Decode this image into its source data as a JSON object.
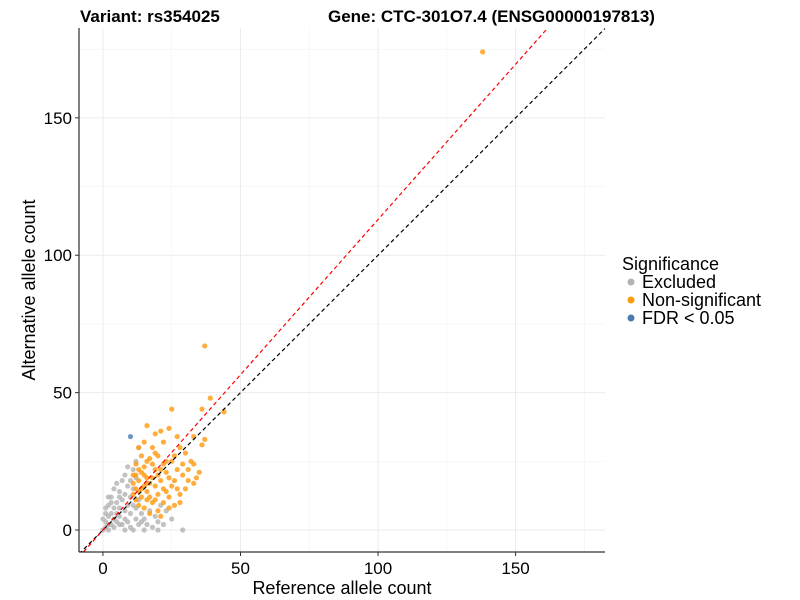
{
  "chart_data": {
    "type": "scatter",
    "title_left": "Variant: rs354025",
    "title_right": "Gene: CTC-301O7.4 (ENSG00000197813)",
    "xlabel": "Reference allele count",
    "ylabel": "Alternative allele count",
    "xlim": [
      -8.7,
      182.5
    ],
    "ylim": [
      -8,
      182.7
    ],
    "xticks": [
      0,
      50,
      100,
      150
    ],
    "yticks": [
      0,
      50,
      100,
      150
    ],
    "grid": true,
    "legend": {
      "title": "Significance",
      "placement": "right",
      "entries": [
        {
          "label": "Excluded",
          "color": "#b3b3b3"
        },
        {
          "label": "Non-significant",
          "color": "#ff9a0e"
        },
        {
          "label": "FDR < 0.05",
          "color": "#4a7bb0"
        }
      ]
    },
    "reference_lines": [
      {
        "name": "identity",
        "slope": 1.0,
        "intercept": 0,
        "color": "#000000",
        "style": "dashed"
      },
      {
        "name": "fit",
        "slope": 1.13,
        "intercept": 0,
        "color": "#ff0000",
        "style": "dashed"
      }
    ],
    "series": [
      {
        "name": "Excluded",
        "color": "#b3b3b3",
        "points": [
          [
            0,
            0
          ],
          [
            1,
            1
          ],
          [
            2,
            0
          ],
          [
            3,
            2
          ],
          [
            1,
            3
          ],
          [
            2,
            5
          ],
          [
            0,
            4
          ],
          [
            4,
            1
          ],
          [
            5,
            3
          ],
          [
            3,
            6
          ],
          [
            6,
            5
          ],
          [
            4,
            8
          ],
          [
            2,
            9
          ],
          [
            7,
            2
          ],
          [
            8,
            4
          ],
          [
            6,
            8
          ],
          [
            5,
            10
          ],
          [
            3,
            12
          ],
          [
            7,
            11
          ],
          [
            8,
            7
          ],
          [
            9,
            3
          ],
          [
            10,
            1
          ],
          [
            9,
            9
          ],
          [
            10,
            6
          ],
          [
            6,
            14
          ],
          [
            4,
            15
          ],
          [
            8,
            13
          ],
          [
            9,
            16
          ],
          [
            7,
            18
          ],
          [
            5,
            17
          ],
          [
            10,
            12
          ],
          [
            11,
            9
          ],
          [
            12,
            4
          ],
          [
            13,
            2
          ],
          [
            12,
            8
          ],
          [
            14,
            6
          ],
          [
            11,
            15
          ],
          [
            13,
            11
          ],
          [
            15,
            4
          ],
          [
            16,
            2
          ],
          [
            17,
            7
          ],
          [
            18,
            1
          ],
          [
            19,
            5
          ],
          [
            20,
            3
          ],
          [
            22,
            2
          ],
          [
            25,
            4
          ],
          [
            29,
            0
          ],
          [
            20,
            0
          ],
          [
            23,
            7
          ],
          [
            21,
            9
          ],
          [
            8,
            20
          ],
          [
            6,
            12
          ],
          [
            3,
            10
          ],
          [
            1,
            6
          ],
          [
            2,
            12
          ],
          [
            12,
            19
          ],
          [
            10,
            18
          ],
          [
            11,
            22
          ],
          [
            12,
            25
          ],
          [
            9,
            23
          ],
          [
            13,
            30
          ],
          [
            2,
            2
          ],
          [
            4,
            4
          ],
          [
            6,
            2
          ],
          [
            1,
            8
          ],
          [
            5,
            6
          ],
          [
            8,
            0
          ],
          [
            15,
            0
          ],
          [
            11,
            0
          ],
          [
            14,
            3
          ]
        ]
      },
      {
        "name": "Non-significant",
        "color": "#ff9a0e",
        "points": [
          [
            138,
            174
          ],
          [
            37,
            67
          ],
          [
            44,
            43
          ],
          [
            39,
            48
          ],
          [
            36,
            44
          ],
          [
            25,
            44
          ],
          [
            37,
            33
          ],
          [
            33,
            34
          ],
          [
            36,
            31
          ],
          [
            33,
            24
          ],
          [
            24,
            37
          ],
          [
            21,
            36
          ],
          [
            16,
            38
          ],
          [
            19,
            35
          ],
          [
            27,
            34
          ],
          [
            28,
            30
          ],
          [
            22,
            32
          ],
          [
            15,
            32
          ],
          [
            13,
            30
          ],
          [
            18,
            30
          ],
          [
            30,
            28
          ],
          [
            32,
            25
          ],
          [
            26,
            27
          ],
          [
            14,
            27
          ],
          [
            12,
            24
          ],
          [
            16,
            25
          ],
          [
            20,
            27
          ],
          [
            23,
            25
          ],
          [
            27,
            22
          ],
          [
            29,
            20
          ],
          [
            31,
            18
          ],
          [
            24,
            19
          ],
          [
            19,
            22
          ],
          [
            15,
            20
          ],
          [
            13,
            18
          ],
          [
            17,
            17
          ],
          [
            21,
            18
          ],
          [
            25,
            16
          ],
          [
            28,
            13
          ],
          [
            30,
            15
          ],
          [
            33,
            17
          ],
          [
            24,
            12
          ],
          [
            20,
            13
          ],
          [
            16,
            14
          ],
          [
            14,
            12
          ],
          [
            12,
            15
          ],
          [
            18,
            10
          ],
          [
            22,
            10
          ],
          [
            26,
            9
          ],
          [
            13,
            9
          ],
          [
            15,
            8
          ],
          [
            17,
            6
          ],
          [
            20,
            7
          ],
          [
            14,
            21
          ],
          [
            18,
            24
          ],
          [
            21,
            22
          ],
          [
            23,
            21
          ],
          [
            16,
            19
          ],
          [
            19,
            16
          ],
          [
            22,
            15
          ],
          [
            12,
            20
          ],
          [
            13,
            22
          ],
          [
            15,
            16
          ],
          [
            17,
            12
          ],
          [
            19,
            11
          ],
          [
            11,
            17
          ],
          [
            11,
            13
          ],
          [
            26,
            18
          ],
          [
            27,
            15
          ],
          [
            23,
            14
          ],
          [
            29,
            24
          ],
          [
            31,
            22
          ],
          [
            34,
            19
          ],
          [
            25,
            25
          ],
          [
            18,
            19
          ],
          [
            20,
            20
          ],
          [
            14,
            15
          ],
          [
            16,
            11
          ],
          [
            24,
            8
          ],
          [
            21,
            5
          ],
          [
            12,
            11
          ],
          [
            28,
            10
          ],
          [
            35,
            21
          ],
          [
            19,
            28
          ],
          [
            17,
            26
          ],
          [
            22,
            24
          ],
          [
            15,
            23
          ],
          [
            13,
            14
          ],
          [
            11,
            20
          ],
          [
            16,
            17
          ]
        ]
      },
      {
        "name": "FDR < 0.05",
        "color": "#4a7bb0",
        "points": [
          [
            10,
            34
          ]
        ]
      }
    ]
  }
}
